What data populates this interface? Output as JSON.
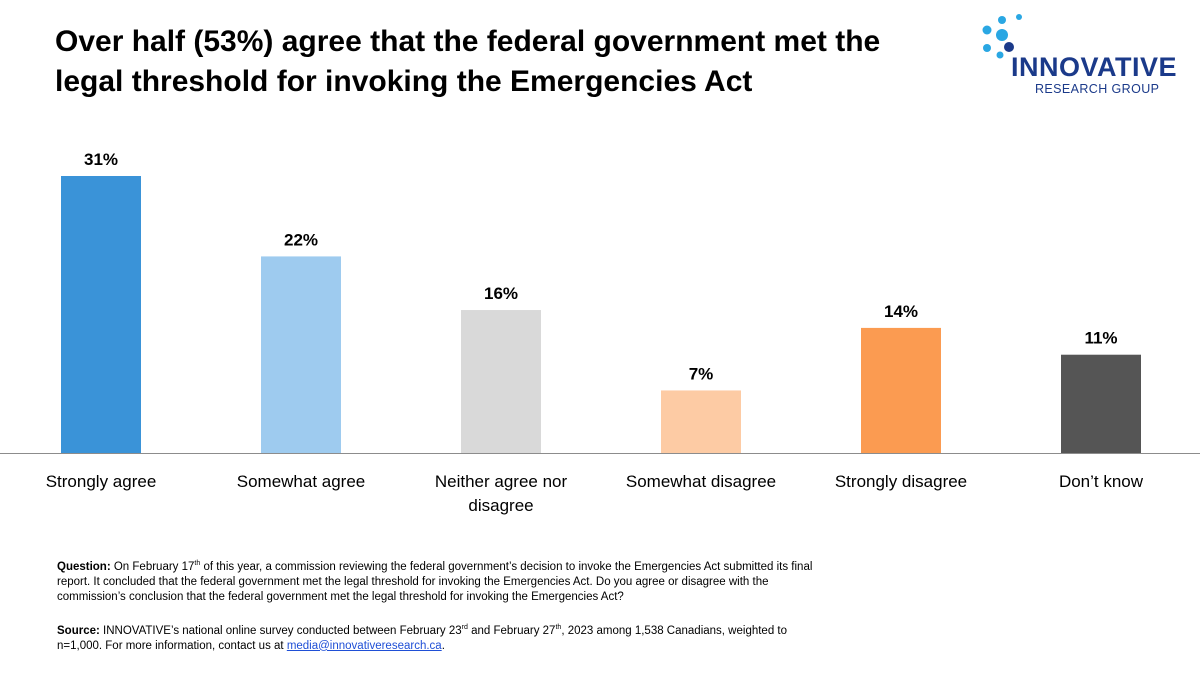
{
  "title": "Over half (53%) agree that the federal government met the legal threshold for invoking the Emergencies Act",
  "logo": {
    "brand": "INNOVATIVE",
    "sub": "RESEARCH GROUP"
  },
  "chart_data": {
    "type": "bar",
    "title": "Over half (53%) agree that the federal government met the legal threshold for invoking the Emergencies Act",
    "categories": [
      "Strongly agree",
      "Somewhat agree",
      "Neither agree nor disagree",
      "Somewhat disagree",
      "Strongly disagree",
      "Don’t know"
    ],
    "values": [
      31,
      22,
      16,
      7,
      14,
      11
    ],
    "labels": [
      "31%",
      "22%",
      "16%",
      "7%",
      "14%",
      "11%"
    ],
    "colors": [
      "#3a93d8",
      "#9ecbef",
      "#d9d9d9",
      "#fdcba4",
      "#fb9b51",
      "#555555"
    ],
    "xlabel": "",
    "ylabel": "",
    "ylim": [
      0,
      31
    ],
    "grid": false,
    "legend": "none"
  },
  "question": {
    "label": "Question:",
    "text_1": " On February 17",
    "sup_1": "th",
    "text_2": "  of this year, a commission reviewing the federal government’s decision to invoke the Emergencies Act submitted its final report. It concluded that the federal government met the legal threshold for invoking the Emergencies Act. Do you agree or disagree with the commission’s conclusion that the federal government met the legal threshold for invoking the Emergencies Act?"
  },
  "source": {
    "label": "Source:",
    "text_1": " INNOVATIVE’s national online survey conducted between February 23",
    "sup_1": "rd",
    "text_2": " and February 27",
    "sup_2": "th",
    "text_3": ", 2023  among 1,538  Canadians, weighted to n=1,000. For more information, contact us at ",
    "email": "media@innovativeresearch.ca",
    "text_4": "."
  }
}
